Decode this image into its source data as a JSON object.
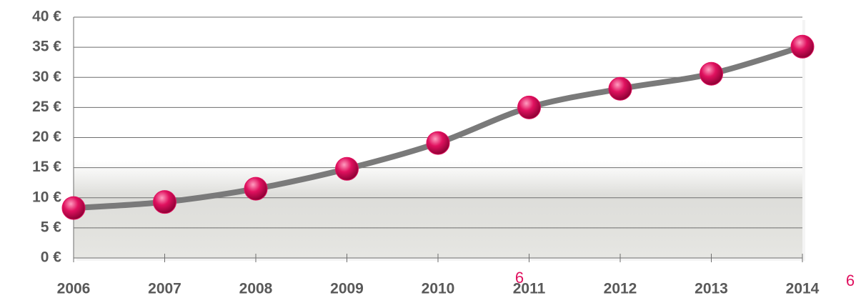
{
  "chart_data": {
    "type": "line",
    "categories": [
      "2006",
      "2007",
      "2008",
      "2009",
      "2010",
      "2011",
      "2012",
      "2013",
      "2014"
    ],
    "values": [
      8.3,
      9.3,
      11.5,
      14.8,
      19.1,
      25,
      28.1,
      30.6,
      35.1
    ],
    "color": "#7a7a7a",
    "marker_color": "#e0115f",
    "ylim": [
      0,
      40
    ],
    "yticks": [
      {
        "value": 0,
        "label": "0 €"
      },
      {
        "value": 5,
        "label": "5 €"
      },
      {
        "value": 10,
        "label": "10 €"
      },
      {
        "value": 15,
        "label": "15 €"
      },
      {
        "value": 20,
        "label": "20 €"
      },
      {
        "value": 25,
        "label": "25 €"
      },
      {
        "value": 30,
        "label": "30 €"
      },
      {
        "value": 35,
        "label": "35 €"
      },
      {
        "value": 40,
        "label": "40 €"
      }
    ],
    "grid": true,
    "annotations": [
      "6",
      "6"
    ]
  }
}
